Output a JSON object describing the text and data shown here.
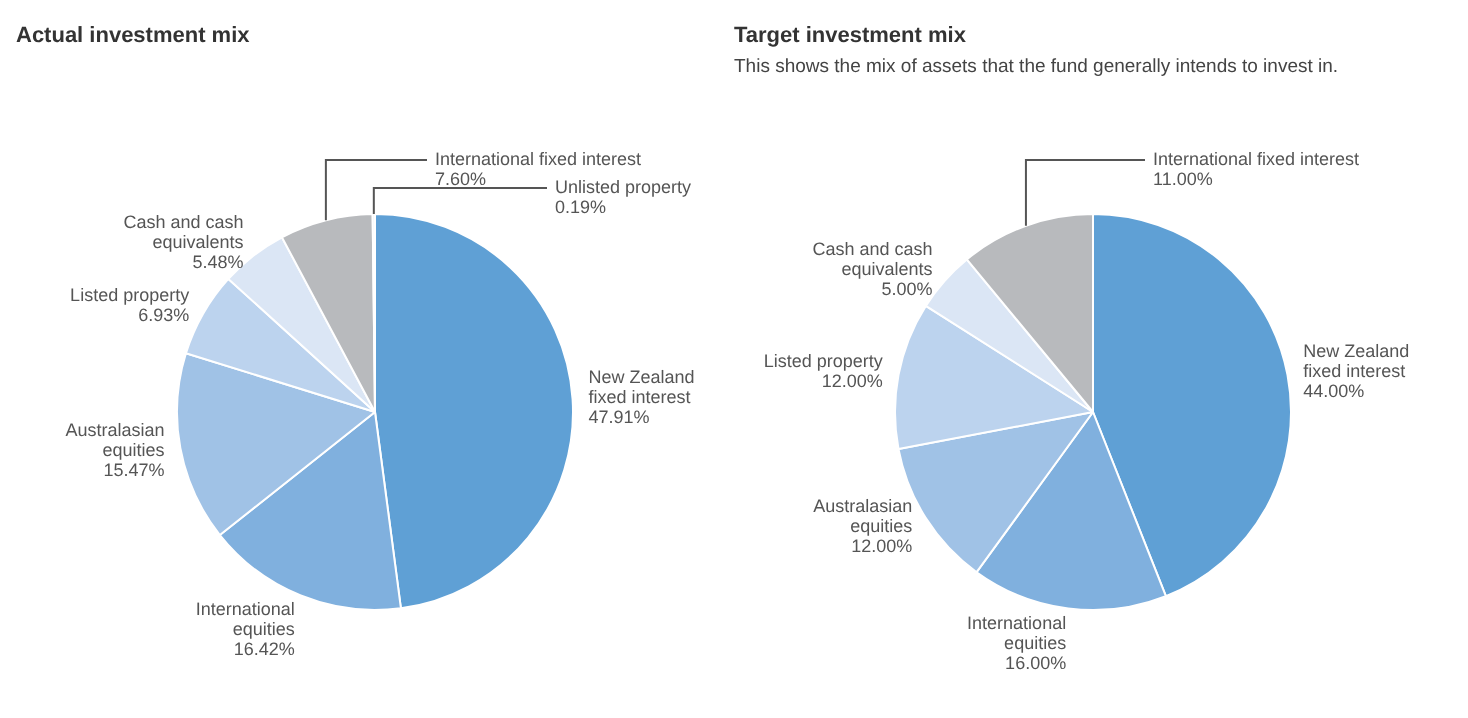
{
  "chart_data": [
    {
      "type": "pie",
      "title": "Actual investment mix",
      "categories": [
        "New Zealand fixed interest",
        "International equities",
        "Australasian equities",
        "Listed property",
        "Cash and cash equivalents",
        "International fixed interest",
        "Unlisted property"
      ],
      "values": [
        47.91,
        16.42,
        15.47,
        6.93,
        5.48,
        7.6,
        0.19
      ],
      "value_labels": [
        "47.91%",
        "16.42%",
        "15.47%",
        "6.93%",
        "5.48%",
        "7.60%",
        "0.19%"
      ],
      "colors": [
        "#5fa0d5",
        "#80b0de",
        "#a0c2e6",
        "#bcd3ee",
        "#dbe6f5",
        "#b8babd",
        "#e9eef5"
      ]
    },
    {
      "type": "pie",
      "title": "Target investment mix",
      "subtitle": "This shows the mix of assets that the fund generally intends to invest in.",
      "categories": [
        "New Zealand fixed interest",
        "International equities",
        "Australasian equities",
        "Listed property",
        "Cash and cash equivalents",
        "International fixed interest"
      ],
      "values": [
        44.0,
        16.0,
        12.0,
        12.0,
        5.0,
        11.0
      ],
      "value_labels": [
        "44.00%",
        "16.00%",
        "12.00%",
        "12.00%",
        "5.00%",
        "11.00%"
      ],
      "colors": [
        "#5fa0d5",
        "#80b0de",
        "#a0c2e6",
        "#bcd3ee",
        "#dbe6f5",
        "#b8babd"
      ]
    }
  ]
}
